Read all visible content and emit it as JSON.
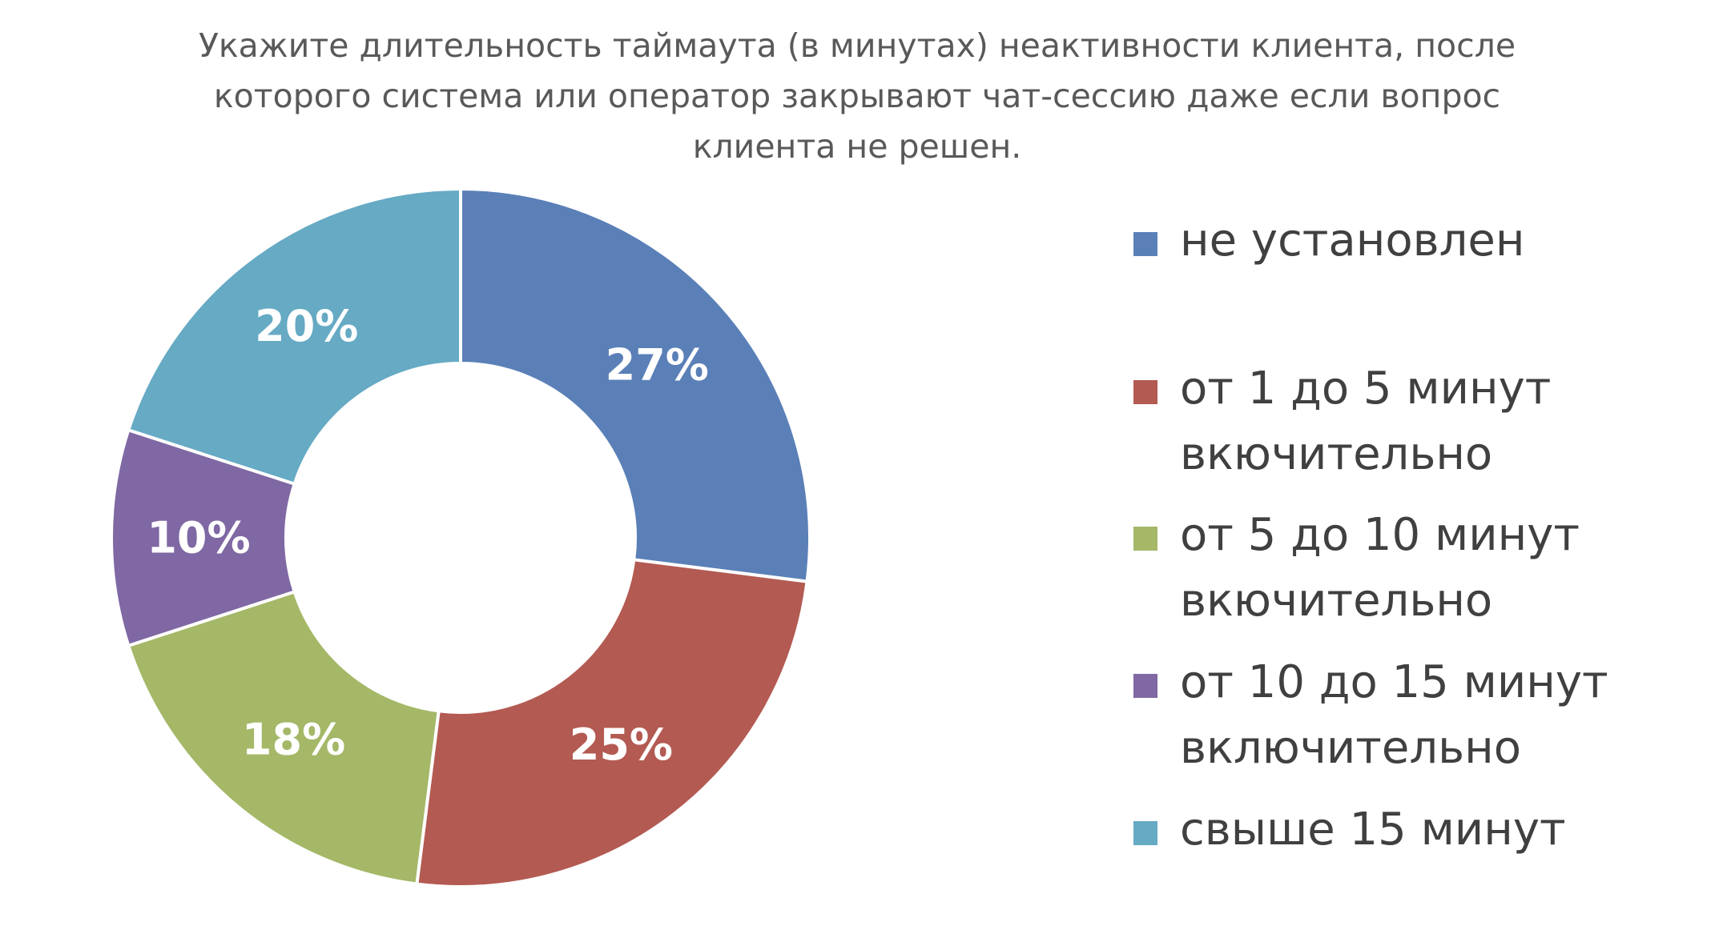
{
  "chart_data": {
    "type": "pie",
    "title": "Укажите длительность таймаута (в минутах) неактивности клиента, после которого система или оператор закрывают чат-сессию даже если вопрос клиента не решен.",
    "donut": true,
    "legend_position": "right",
    "categories": [
      "не установлен",
      "от 1 до 5 минут вкючительно",
      "от 5 до 10 минут вкючительно",
      "от 10 до 15 минут включительно",
      "свыше 15 минут"
    ],
    "values": [
      27,
      25,
      18,
      10,
      20
    ],
    "data_labels": [
      "27%",
      "25%",
      "18%",
      "10%",
      "20%"
    ],
    "colors": [
      "#5B80B8",
      "#B35A52",
      "#A4B868",
      "#7F68A3",
      "#66AAC4"
    ]
  }
}
